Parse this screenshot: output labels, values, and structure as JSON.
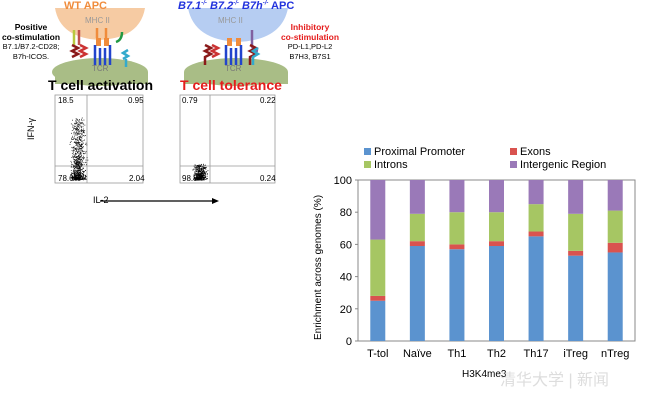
{
  "left_panel": {
    "wt_apc": {
      "title": "WT  APC",
      "mhc": "MHC II",
      "tcr": "TCR",
      "color": "#f08c3c"
    },
    "ko_apc": {
      "title_parts": [
        "B7.1",
        "-/-",
        " B7.2",
        "-/-",
        " B7h",
        "-/-",
        " APC"
      ],
      "mhc": "MHC II",
      "tcr": "TCR",
      "color": "#2233dd"
    },
    "positive": {
      "title": "Positive",
      "title2": "co-stimulation",
      "line1": "B7.1/B7.2-CD28;",
      "line2": "B7h-ICOS."
    },
    "inhibitory": {
      "title": "Inhibitory",
      "title2": "co-stimulation",
      "line1": "PD-L1,PD-L2",
      "line2": "B7H3, B7S1"
    },
    "activation_title": "T cell activation",
    "tolerance_title": "T cell tolerance",
    "plot_activation": {
      "ul": "18.5",
      "ur": "0.95",
      "ll": "78.6",
      "lr": "2.04"
    },
    "plot_tolerance": {
      "ul": "0.79",
      "ur": "0.22",
      "ll": "98.8",
      "lr": "0.24"
    },
    "ylabel": "IFN-γ",
    "xlabel": "IL-2"
  },
  "chart_data": {
    "type": "bar",
    "stacked": true,
    "categories": [
      "T-tol",
      "Naïve",
      "Th1",
      "Th2",
      "Th17",
      "iTreg",
      "nTreg"
    ],
    "series": [
      {
        "name": "Proximal Promoter",
        "color": "#5b93cf",
        "values": [
          25,
          59,
          57,
          59,
          65,
          53,
          55
        ]
      },
      {
        "name": "Exons",
        "color": "#d9534f",
        "values": [
          3,
          3,
          3,
          3,
          3,
          3,
          6
        ]
      },
      {
        "name": "Introns",
        "color": "#a6c663",
        "values": [
          35,
          17,
          20,
          18,
          17,
          23,
          20
        ]
      },
      {
        "name": "Intergenic Region",
        "color": "#9a79b8",
        "values": [
          37,
          21,
          20,
          20,
          15,
          21,
          19
        ]
      }
    ],
    "ylabel": "Enrichment across genomes (%)",
    "xlabel": "H3K4me3",
    "ylim": [
      0,
      100
    ],
    "yticks": [
      "0",
      "20",
      "40",
      "60",
      "80",
      "100"
    ],
    "legend": "top"
  },
  "watermark": "清华大学 | 新闻"
}
